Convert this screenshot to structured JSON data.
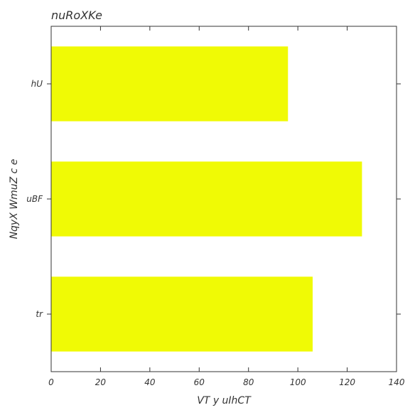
{
  "chart_data": {
    "type": "bar",
    "orientation": "horizontal",
    "title": "nuRoXKe",
    "xlabel": "VT y uIhCT",
    "ylabel": "NqyX WmuZ  c e",
    "categories": [
      "hU",
      "uBF",
      "tr"
    ],
    "values": [
      96,
      126,
      106
    ],
    "xlim": [
      0,
      140
    ],
    "xticks": [
      0,
      20,
      40,
      60,
      80,
      100,
      120,
      140
    ],
    "grid": false,
    "bar_color": "#f0fa05"
  }
}
